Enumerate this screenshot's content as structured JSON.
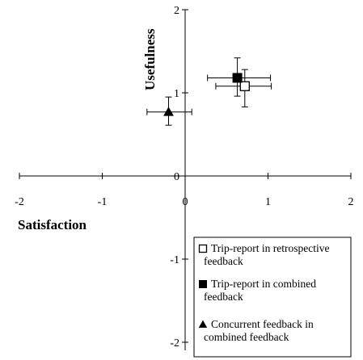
{
  "chart_data": {
    "type": "scatter",
    "xlabel": "Satisfaction",
    "ylabel": "Usefulness",
    "xlim": [
      -2,
      2
    ],
    "ylim": [
      -2,
      2
    ],
    "x_ticks": [
      "-2",
      "-1",
      "0",
      "1",
      "2"
    ],
    "y_ticks": [
      "2",
      "1",
      "0",
      "-1",
      "-2"
    ],
    "grid": false,
    "legend_position": "bottom-right",
    "series": [
      {
        "name_lines": [
          "Trip-report in retrospective",
          "feedback"
        ],
        "marker": "open-square",
        "x": 0.72,
        "y": 1.08,
        "x_err": [
          0.35,
          0.32
        ],
        "y_err": [
          0.25,
          0.2
        ]
      },
      {
        "name_lines": [
          "Trip-report in combined",
          "feedback"
        ],
        "marker": "filled-square",
        "x": 0.63,
        "y": 1.18,
        "x_err": [
          0.36,
          0.4
        ],
        "y_err": [
          0.22,
          0.24
        ]
      },
      {
        "name_lines": [
          "Concurrent feedback in",
          "combined feedback"
        ],
        "marker": "filled-triangle",
        "x": -0.2,
        "y": 0.77,
        "x_err": [
          0.26,
          0.28
        ],
        "y_err": [
          0.16,
          0.18
        ]
      }
    ]
  }
}
